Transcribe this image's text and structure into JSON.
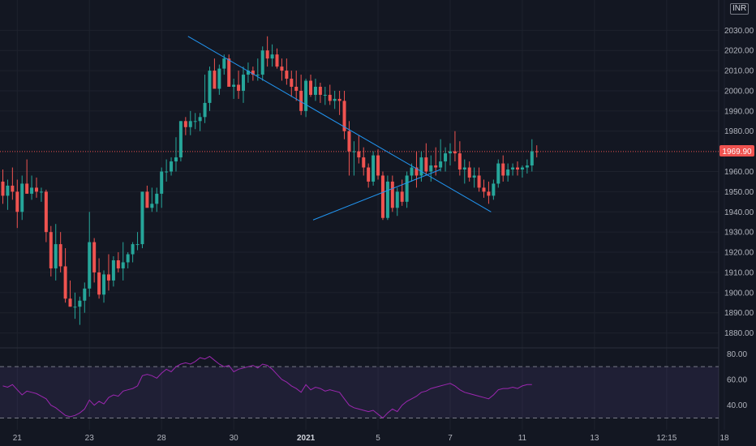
{
  "colors": {
    "background": "#131722",
    "grid": "#1e222d",
    "up": "#26a69a",
    "down": "#ef5350",
    "trendline": "#2196f3",
    "rsi_line": "#9c27b0",
    "rsi_band": "#7e57c2",
    "price_line": "#ef5350"
  },
  "currency": "INR",
  "last_price_label": "1969.90",
  "chart_data": [
    {
      "type": "candlestick",
      "title": "",
      "x_tick_labels": [
        "21",
        "23",
        "28",
        "30",
        "2021",
        "5",
        "7",
        "11",
        "13",
        "12:15",
        "18"
      ],
      "y_tick_labels": [
        "2030.00",
        "2020.00",
        "2010.00",
        "2000.00",
        "1990.00",
        "1980.00",
        "1960.00",
        "1950.00",
        "1940.00",
        "1930.00",
        "1920.00",
        "1910.00",
        "1900.00",
        "1890.00",
        "1880.00"
      ],
      "ylim": [
        1873,
        2045
      ],
      "last_price": 1969.9,
      "grid": true,
      "candles": [
        [
          1955,
          1961,
          1944,
          1948
        ],
        [
          1948,
          1956,
          1941,
          1953
        ],
        [
          1953,
          1962,
          1946,
          1950
        ],
        [
          1950,
          1956,
          1932,
          1940
        ],
        [
          1940,
          1958,
          1936,
          1954
        ],
        [
          1954,
          1966,
          1949,
          1949
        ],
        [
          1949,
          1958,
          1946,
          1952
        ],
        [
          1952,
          1957,
          1947,
          1950
        ],
        [
          1950,
          1952,
          1945,
          1950
        ],
        [
          1950,
          1951,
          1925,
          1930
        ],
        [
          1930,
          1933,
          1908,
          1912
        ],
        [
          1912,
          1934,
          1906,
          1924
        ],
        [
          1924,
          1930,
          1910,
          1913
        ],
        [
          1913,
          1922,
          1895,
          1897
        ],
        [
          1897,
          1906,
          1893,
          1893
        ],
        [
          1893,
          1900,
          1887,
          1893
        ],
        [
          1893,
          1898,
          1884,
          1896
        ],
        [
          1896,
          1905,
          1890,
          1902
        ],
        [
          1902,
          1940,
          1898,
          1925
        ],
        [
          1925,
          1927,
          1905,
          1910
        ],
        [
          1910,
          1917,
          1897,
          1899
        ],
        [
          1899,
          1911,
          1895,
          1909
        ],
        [
          1909,
          1919,
          1901,
          1906
        ],
        [
          1906,
          1918,
          1903,
          1916
        ],
        [
          1916,
          1920,
          1910,
          1912
        ],
        [
          1912,
          1925,
          1906,
          1915
        ],
        [
          1915,
          1920,
          1912,
          1919
        ],
        [
          1919,
          1925,
          1915,
          1924
        ],
        [
          1924,
          1930,
          1921,
          1924
        ],
        [
          1924,
          1950,
          1922,
          1950
        ],
        [
          1950,
          1953,
          1943,
          1942
        ],
        [
          1942,
          1952,
          1940,
          1944
        ],
        [
          1944,
          1952,
          1940,
          1949
        ],
        [
          1949,
          1962,
          1942,
          1960
        ],
        [
          1960,
          1966,
          1955,
          1960
        ],
        [
          1960,
          1967,
          1958,
          1965
        ],
        [
          1965,
          1977,
          1960,
          1967
        ],
        [
          1967,
          1985,
          1965,
          1985
        ],
        [
          1985,
          1987,
          1978,
          1982
        ],
        [
          1982,
          1990,
          1978,
          1985
        ],
        [
          1985,
          1989,
          1981,
          1985
        ],
        [
          1985,
          1989,
          1980,
          1987
        ],
        [
          1987,
          2008,
          1984,
          1994
        ],
        [
          1994,
          2012,
          1990,
          2010
        ],
        [
          2010,
          2016,
          2002,
          2001
        ],
        [
          2001,
          2013,
          1998,
          2011
        ],
        [
          2011,
          2018,
          2008,
          2016
        ],
        [
          2016,
          2018,
          2003,
          2002
        ],
        [
          2002,
          2006,
          1996,
          2003
        ],
        [
          2003,
          2010,
          1996,
          2000
        ],
        [
          2000,
          2012,
          1994,
          2008
        ],
        [
          2008,
          2014,
          2004,
          2010
        ],
        [
          2010,
          2012,
          2005,
          2008
        ],
        [
          2008,
          2016,
          2005,
          2008
        ],
        [
          2008,
          2022,
          2005,
          2020
        ],
        [
          2020,
          2027,
          2012,
          2016
        ],
        [
          2016,
          2023,
          2012,
          2018
        ],
        [
          2018,
          2021,
          2011,
          2012
        ],
        [
          2012,
          2016,
          2005,
          2010
        ],
        [
          2010,
          2016,
          2003,
          2006
        ],
        [
          2006,
          2010,
          1997,
          2002
        ],
        [
          2002,
          2010,
          1995,
          2000
        ],
        [
          2000,
          2008,
          1988,
          1990
        ],
        [
          1990,
          2006,
          1987,
          2005
        ],
        [
          2005,
          2008,
          1997,
          1998
        ],
        [
          1998,
          2006,
          1995,
          2002
        ],
        [
          2002,
          2004,
          1994,
          1998
        ],
        [
          1998,
          2002,
          1993,
          1998
        ],
        [
          1998,
          2003,
          1993,
          1995
        ],
        [
          1995,
          2000,
          1991,
          1996
        ],
        [
          1996,
          2000,
          1988,
          1995
        ],
        [
          1995,
          2000,
          1976,
          1980
        ],
        [
          1980,
          1985,
          1958,
          1970
        ],
        [
          1970,
          1975,
          1958,
          1970
        ],
        [
          1970,
          1978,
          1964,
          1967
        ],
        [
          1967,
          1972,
          1958,
          1962
        ],
        [
          1962,
          1964,
          1952,
          1955
        ],
        [
          1955,
          1970,
          1953,
          1968
        ],
        [
          1968,
          1971,
          1956,
          1958
        ],
        [
          1958,
          1960,
          1936,
          1937
        ],
        [
          1937,
          1958,
          1936,
          1955
        ],
        [
          1955,
          1958,
          1940,
          1942
        ],
        [
          1942,
          1952,
          1938,
          1950
        ],
        [
          1950,
          1956,
          1943,
          1945
        ],
        [
          1945,
          1960,
          1942,
          1958
        ],
        [
          1958,
          1964,
          1955,
          1962
        ],
        [
          1962,
          1970,
          1952,
          1958
        ],
        [
          1958,
          1970,
          1955,
          1967
        ],
        [
          1967,
          1974,
          1958,
          1960
        ],
        [
          1960,
          1968,
          1955,
          1963
        ],
        [
          1963,
          1972,
          1958,
          1962
        ],
        [
          1962,
          1976,
          1960,
          1965
        ],
        [
          1965,
          1972,
          1960,
          1969
        ],
        [
          1969,
          1974,
          1963,
          1970
        ],
        [
          1970,
          1980,
          1965,
          1969
        ],
        [
          1969,
          1975,
          1958,
          1961
        ],
        [
          1961,
          1966,
          1954,
          1962
        ],
        [
          1962,
          1965,
          1955,
          1957
        ],
        [
          1957,
          1962,
          1952,
          1958
        ],
        [
          1958,
          1962,
          1950,
          1952
        ],
        [
          1952,
          1956,
          1947,
          1950
        ],
        [
          1950,
          1955,
          1944,
          1948
        ],
        [
          1948,
          1956,
          1946,
          1954
        ],
        [
          1954,
          1966,
          1952,
          1964
        ],
        [
          1964,
          1968,
          1955,
          1958
        ],
        [
          1958,
          1964,
          1955,
          1961
        ],
        [
          1961,
          1964,
          1958,
          1962
        ],
        [
          1962,
          1965,
          1958,
          1961
        ],
        [
          1961,
          1963,
          1957,
          1962
        ],
        [
          1962,
          1966,
          1959,
          1963
        ],
        [
          1963,
          1976,
          1960,
          1970
        ],
        [
          1970,
          1973,
          1967,
          1969.9
        ]
      ],
      "trendlines": [
        {
          "from": [
            38.5,
            2027
          ],
          "to": [
            101.5,
            1940
          ]
        },
        {
          "from": [
            64.5,
            1936
          ],
          "to": [
            91,
            1961
          ]
        }
      ]
    },
    {
      "type": "line",
      "title": "",
      "y_tick_labels": [
        "80.00",
        "60.00",
        "40.00"
      ],
      "ylim": [
        24,
        84
      ],
      "bands": [
        30,
        70
      ],
      "values": [
        55,
        54,
        56,
        52,
        48,
        51,
        50,
        49,
        47,
        45,
        40,
        38,
        35,
        32,
        31,
        32,
        34,
        37,
        44,
        40,
        43,
        41,
        46,
        48,
        47,
        51,
        52,
        53,
        55,
        63,
        64,
        63,
        61,
        65,
        68,
        66,
        70,
        72,
        73,
        72,
        74,
        77,
        76,
        78,
        75,
        72,
        70,
        71,
        66,
        68,
        69,
        70,
        71,
        69,
        72,
        71,
        68,
        64,
        60,
        58,
        55,
        53,
        50,
        56,
        52,
        54,
        53,
        51,
        52,
        51,
        50,
        45,
        40,
        38,
        37,
        36,
        35,
        36,
        33,
        30,
        34,
        37,
        35,
        40,
        43,
        45,
        47,
        50,
        51,
        53,
        54,
        55,
        56,
        57,
        55,
        52,
        50,
        49,
        48,
        47,
        46,
        45,
        48,
        52,
        53,
        53,
        54,
        53,
        55,
        56,
        56
      ]
    }
  ]
}
